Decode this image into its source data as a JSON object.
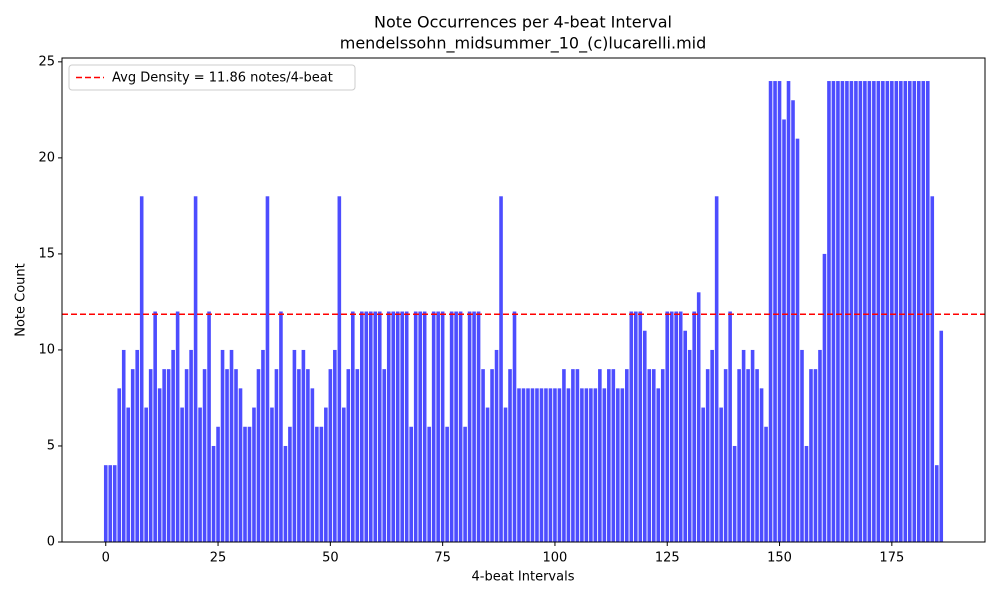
{
  "chart_data": {
    "type": "bar",
    "title": "Note Occurrences per 4-beat Interval",
    "subtitle": "mendelssohn_midsummer_10_(c)lucarelli.mid",
    "xlabel": "4-beat Intervals",
    "ylabel": "Note Count",
    "x": [
      0,
      1,
      2,
      3,
      4,
      5,
      6,
      7,
      8,
      9,
      10,
      11,
      12,
      13,
      14,
      15,
      16,
      17,
      18,
      19,
      20,
      21,
      22,
      23,
      24,
      25,
      26,
      27,
      28,
      29,
      30,
      31,
      32,
      33,
      34,
      35,
      36,
      37,
      38,
      39,
      40,
      41,
      42,
      43,
      44,
      45,
      46,
      47,
      48,
      49,
      50,
      51,
      52,
      53,
      54,
      55,
      56,
      57,
      58,
      59,
      60,
      61,
      62,
      63,
      64,
      65,
      66,
      67,
      68,
      69,
      70,
      71,
      72,
      73,
      74,
      75,
      76,
      77,
      78,
      79,
      80,
      81,
      82,
      83,
      84,
      85,
      86,
      87,
      88,
      89,
      90,
      91,
      92,
      93,
      94,
      95,
      96,
      97,
      98,
      99,
      100,
      101,
      102,
      103,
      104,
      105,
      106,
      107,
      108,
      109,
      110,
      111,
      112,
      113,
      114,
      115,
      116,
      117,
      118,
      119,
      120,
      121,
      122,
      123,
      124,
      125,
      126,
      127,
      128,
      129,
      130,
      131,
      132,
      133,
      134,
      135,
      136,
      137,
      138,
      139,
      140,
      141,
      142,
      143,
      144,
      145,
      146,
      147,
      148,
      149,
      150,
      151,
      152,
      153,
      154,
      155,
      156,
      157,
      158,
      159,
      160,
      161,
      162,
      163,
      164,
      165,
      166,
      167,
      168,
      169,
      170,
      171,
      172,
      173,
      174,
      175,
      176,
      177,
      178,
      179,
      180,
      181,
      182,
      183,
      184,
      185,
      186
    ],
    "values": [
      4,
      4,
      4,
      8,
      10,
      7,
      9,
      10,
      18,
      7,
      9,
      12,
      8,
      9,
      9,
      10,
      12,
      7,
      9,
      10,
      18,
      7,
      9,
      12,
      5,
      6,
      10,
      9,
      10,
      9,
      8,
      6,
      6,
      7,
      9,
      10,
      18,
      7,
      9,
      12,
      5,
      6,
      10,
      9,
      10,
      9,
      8,
      6,
      6,
      7,
      9,
      10,
      18,
      7,
      9,
      12,
      9,
      12,
      12,
      12,
      12,
      12,
      9,
      12,
      12,
      12,
      12,
      12,
      6,
      12,
      12,
      12,
      6,
      12,
      12,
      12,
      6,
      12,
      12,
      12,
      6,
      12,
      12,
      12,
      9,
      7,
      9,
      10,
      18,
      7,
      9,
      12,
      8,
      8,
      8,
      8,
      8,
      8,
      8,
      8,
      8,
      8,
      9,
      8,
      9,
      9,
      8,
      8,
      8,
      8,
      9,
      8,
      9,
      9,
      8,
      8,
      9,
      12,
      12,
      12,
      11,
      9,
      9,
      8,
      9,
      12,
      12,
      12,
      12,
      11,
      10,
      12,
      13,
      7,
      9,
      10,
      18,
      7,
      9,
      12,
      5,
      9,
      10,
      9,
      10,
      9,
      8,
      6,
      24,
      24,
      24,
      22,
      24,
      23,
      21,
      10,
      5,
      9,
      9,
      10,
      15,
      24,
      24,
      24,
      24,
      24,
      24,
      24,
      24,
      24,
      24,
      24,
      24,
      24,
      24,
      24,
      24,
      24,
      24,
      24,
      24,
      24,
      24,
      24,
      18,
      4,
      11
    ],
    "color": "#4d4dff",
    "xlim": [
      -9.74,
      195.74
    ],
    "xticks": [
      0,
      25,
      50,
      75,
      100,
      125,
      150,
      175
    ],
    "ylim": [
      0,
      25.2
    ],
    "yticks": [
      0,
      5,
      10,
      15,
      20,
      25
    ],
    "avg_line": {
      "value": 11.86,
      "label": "Avg Density = 11.86 notes/4-beat",
      "color": "#ff0000"
    },
    "legend": "upper left"
  }
}
